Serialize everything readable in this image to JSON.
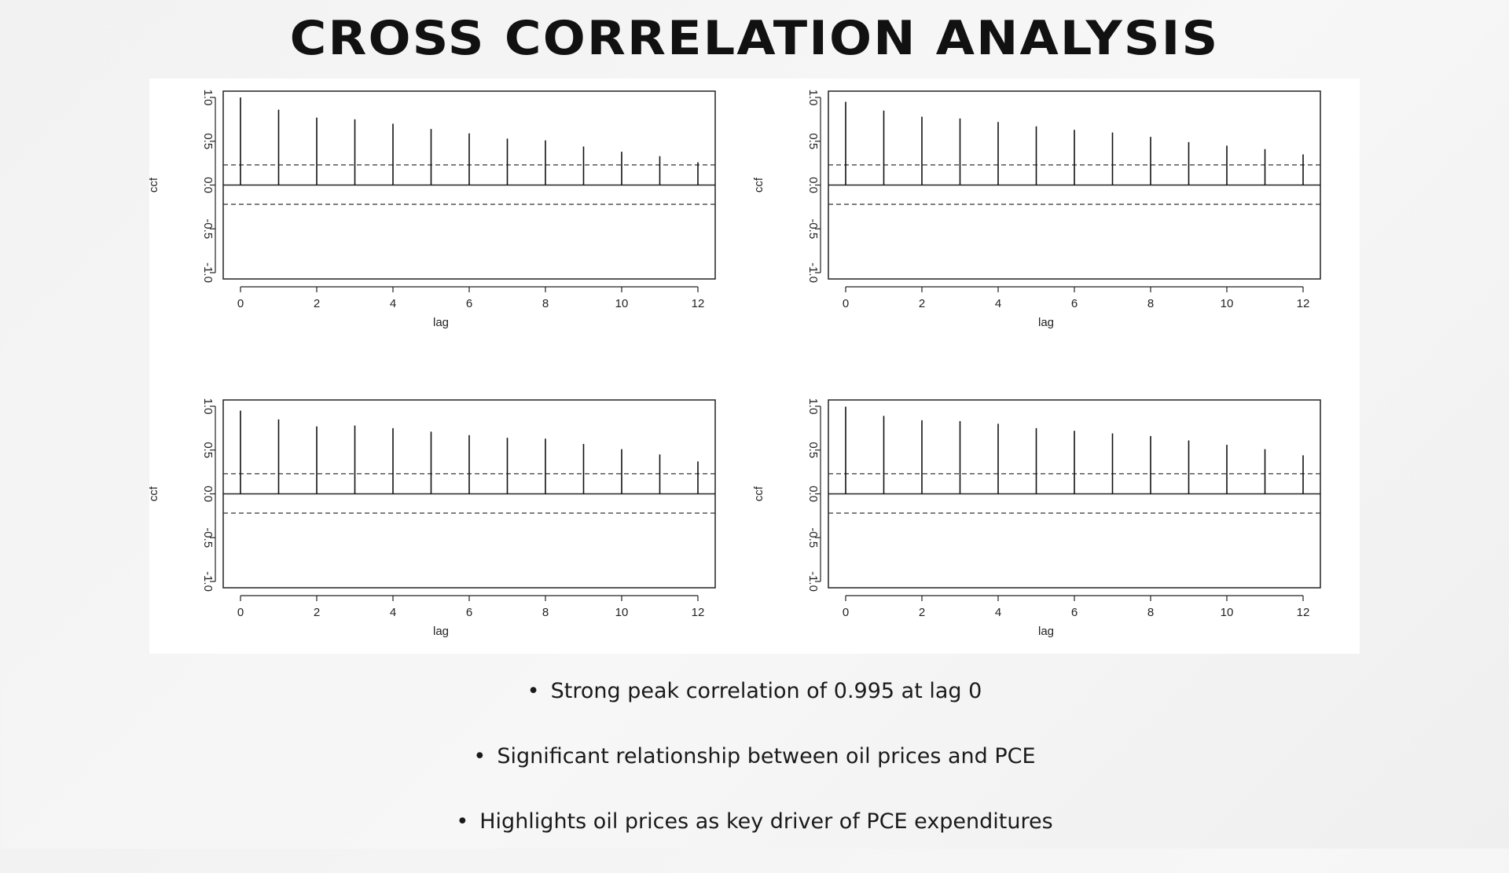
{
  "slide": {
    "title": "CROSS CORRELATION ANALYSIS",
    "bullets": [
      "Strong peak correlation of 0.995 at lag 0",
      "Significant relationship between oil prices and PCE",
      "Highlights oil prices as key driver of PCE expenditures"
    ],
    "bullet_symbol": "•"
  },
  "chart_data": [
    {
      "type": "bar",
      "xlabel": "lag",
      "ylabel": "ccf",
      "x": [
        0,
        1,
        2,
        3,
        4,
        5,
        6,
        7,
        8,
        9,
        10,
        11,
        12
      ],
      "values": [
        1.0,
        0.86,
        0.77,
        0.75,
        0.7,
        0.64,
        0.59,
        0.53,
        0.51,
        0.44,
        0.38,
        0.33,
        0.26
      ],
      "xticks": [
        "0",
        "2",
        "4",
        "6",
        "8",
        "10",
        "12"
      ],
      "yticks": [
        "-1.0",
        "-0.5",
        "0.0",
        "0.5",
        "1.0"
      ],
      "xlim": [
        -0.5,
        12.5
      ],
      "ylim": [
        -1.0,
        1.0
      ],
      "confidence_bounds": [
        0.23,
        -0.22
      ]
    },
    {
      "type": "bar",
      "xlabel": "lag",
      "ylabel": "ccf",
      "x": [
        0,
        1,
        2,
        3,
        4,
        5,
        6,
        7,
        8,
        9,
        10,
        11,
        12
      ],
      "values": [
        0.95,
        0.85,
        0.78,
        0.76,
        0.72,
        0.67,
        0.63,
        0.6,
        0.55,
        0.49,
        0.45,
        0.41,
        0.35
      ],
      "xticks": [
        "0",
        "2",
        "4",
        "6",
        "8",
        "10",
        "12"
      ],
      "yticks": [
        "-1.0",
        "-0.5",
        "0.0",
        "0.5",
        "1.0"
      ],
      "xlim": [
        -0.5,
        12.5
      ],
      "ylim": [
        -1.0,
        1.0
      ],
      "confidence_bounds": [
        0.23,
        -0.22
      ]
    },
    {
      "type": "bar",
      "xlabel": "lag",
      "ylabel": "ccf",
      "x": [
        0,
        1,
        2,
        3,
        4,
        5,
        6,
        7,
        8,
        9,
        10,
        11,
        12
      ],
      "values": [
        0.95,
        0.85,
        0.77,
        0.78,
        0.75,
        0.71,
        0.67,
        0.64,
        0.63,
        0.57,
        0.51,
        0.45,
        0.37
      ],
      "xticks": [
        "0",
        "2",
        "4",
        "6",
        "8",
        "10",
        "12"
      ],
      "yticks": [
        "-1.0",
        "-0.5",
        "0.0",
        "0.5",
        "1.0"
      ],
      "xlim": [
        -0.5,
        12.5
      ],
      "ylim": [
        -1.0,
        1.0
      ],
      "confidence_bounds": [
        0.23,
        -0.22
      ]
    },
    {
      "type": "bar",
      "xlabel": "lag",
      "ylabel": "ccf",
      "x": [
        0,
        1,
        2,
        3,
        4,
        5,
        6,
        7,
        8,
        9,
        10,
        11,
        12
      ],
      "values": [
        0.995,
        0.89,
        0.84,
        0.83,
        0.8,
        0.75,
        0.72,
        0.69,
        0.66,
        0.61,
        0.56,
        0.51,
        0.44
      ],
      "xticks": [
        "0",
        "2",
        "4",
        "6",
        "8",
        "10",
        "12"
      ],
      "yticks": [
        "-1.0",
        "-0.5",
        "0.0",
        "0.5",
        "1.0"
      ],
      "xlim": [
        -0.5,
        12.5
      ],
      "ylim": [
        -1.0,
        1.0
      ],
      "confidence_bounds": [
        0.23,
        -0.22
      ]
    }
  ]
}
